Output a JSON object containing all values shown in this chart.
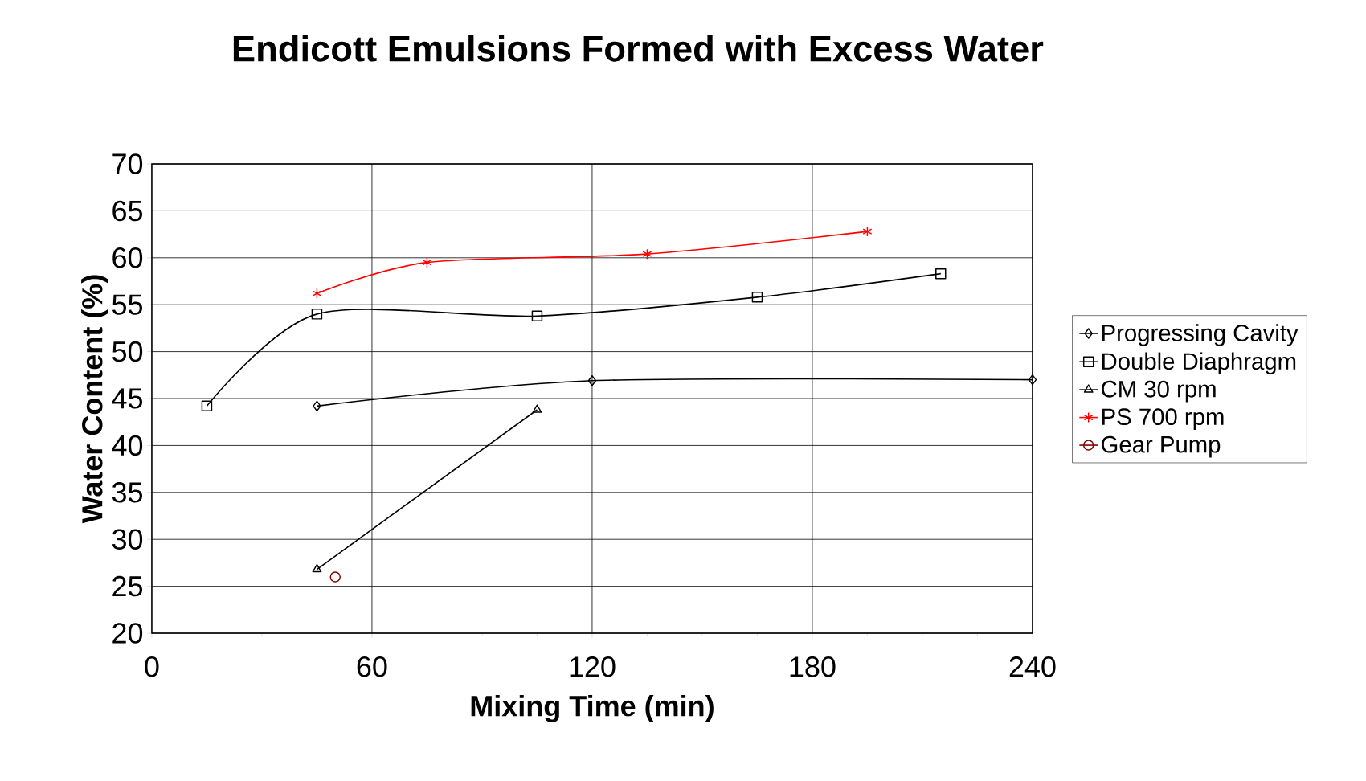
{
  "chart_data": {
    "type": "line",
    "title": "Endicott Emulsions Formed with Excess Water",
    "xlabel": "Mixing Time (min)",
    "ylabel": "Water Content (%)",
    "xlim": [
      0,
      240
    ],
    "xticks": [
      0,
      60,
      120,
      180,
      240
    ],
    "ylim": [
      20,
      70
    ],
    "yticks": [
      20,
      25,
      30,
      35,
      40,
      45,
      50,
      55,
      60,
      65,
      70
    ],
    "grid": true,
    "legend": "right",
    "line_style": "solid",
    "series": [
      {
        "name": "Progressing Cavity",
        "color": "#000000",
        "marker": "diamond",
        "x": [
          45,
          120,
          240
        ],
        "values": [
          44.2,
          46.9,
          47.0
        ]
      },
      {
        "name": "Double Diaphragm",
        "color": "#000000",
        "marker": "square",
        "x": [
          15,
          45,
          105,
          165,
          215
        ],
        "values": [
          44.2,
          54.0,
          53.8,
          55.8,
          58.3
        ]
      },
      {
        "name": "CM 30 rpm",
        "color": "#000000",
        "marker": "triangle",
        "x": [
          45,
          105
        ],
        "values": [
          26.8,
          43.8
        ]
      },
      {
        "name": "PS 700 rpm",
        "color": "#ff0000",
        "marker": "cross",
        "x": [
          45,
          75,
          135,
          195
        ],
        "values": [
          56.2,
          59.5,
          60.4,
          62.8
        ]
      },
      {
        "name": "Gear Pump",
        "color": "#800000",
        "marker": "circle",
        "x": [
          50
        ],
        "values": [
          26.0
        ]
      }
    ]
  }
}
